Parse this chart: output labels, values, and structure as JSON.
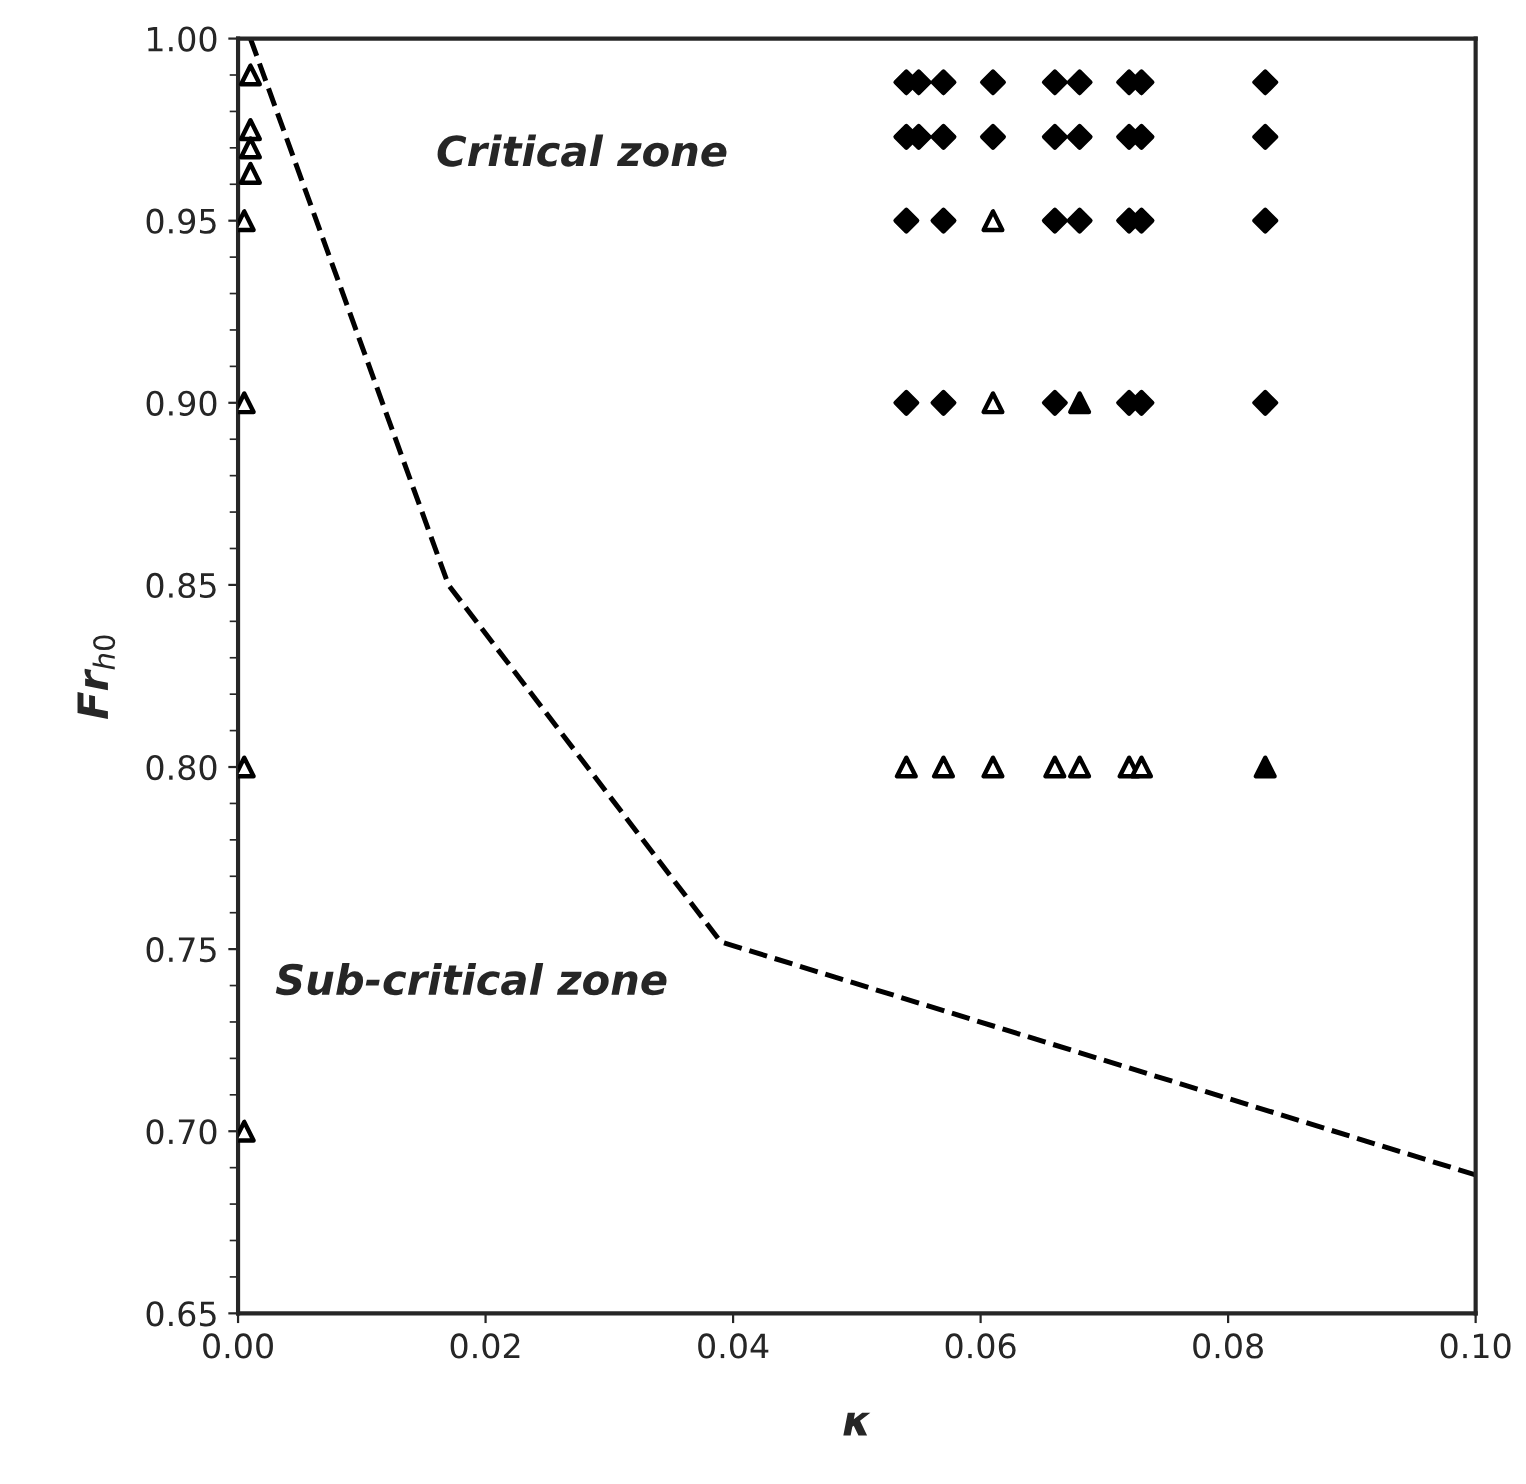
{
  "chart_data": {
    "type": "scatter",
    "xlabel": "κ",
    "ylabel": "Fr$_{h0}$",
    "xlim": [
      0.0,
      0.1
    ],
    "ylim": [
      0.65,
      1.0
    ],
    "xticks": [
      {
        "value": 0.0,
        "label": "0.00"
      },
      {
        "value": 0.02,
        "label": "0.02"
      },
      {
        "value": 0.04,
        "label": "0.04"
      },
      {
        "value": 0.06,
        "label": "0.06"
      },
      {
        "value": 0.08,
        "label": "0.08"
      },
      {
        "value": 0.1,
        "label": "0.10"
      }
    ],
    "yticks": [
      {
        "value": 0.65,
        "label": "0.65"
      },
      {
        "value": 0.7,
        "label": "0.70"
      },
      {
        "value": 0.75,
        "label": "0.75"
      },
      {
        "value": 0.8,
        "label": "0.80"
      },
      {
        "value": 0.85,
        "label": "0.85"
      },
      {
        "value": 0.9,
        "label": "0.90"
      },
      {
        "value": 0.95,
        "label": "0.95"
      },
      {
        "value": 1.0,
        "label": "1.00"
      }
    ],
    "grid": false,
    "annotations": [
      "Critical zone",
      "Sub-critical zone"
    ],
    "series": [
      {
        "marker": "diamond",
        "color": "#000000",
        "x": [
          0.054,
          0.055,
          0.057,
          0.061,
          0.066,
          0.068,
          0.072,
          0.073,
          0.083,
          0.054,
          0.055,
          0.057,
          0.061,
          0.066,
          0.068,
          0.072,
          0.073,
          0.083,
          0.054,
          0.057,
          0.066,
          0.068,
          0.072,
          0.073,
          0.083,
          0.054,
          0.057,
          0.066,
          0.072,
          0.073,
          0.083
        ],
        "values": [
          0.988,
          0.988,
          0.988,
          0.988,
          0.988,
          0.988,
          0.988,
          0.988,
          0.988,
          0.973,
          0.973,
          0.973,
          0.973,
          0.973,
          0.973,
          0.973,
          0.973,
          0.973,
          0.95,
          0.95,
          0.95,
          0.95,
          0.95,
          0.95,
          0.95,
          0.9,
          0.9,
          0.9,
          0.9,
          0.9,
          0.9
        ]
      },
      {
        "marker": "triangle",
        "color": "#ffffff",
        "x": [
          0.001,
          0.001,
          0.001,
          0.001,
          0.0005,
          0.0005,
          0.0005,
          0.0005,
          0.061,
          0.061,
          0.054,
          0.057,
          0.061,
          0.066,
          0.068,
          0.072,
          0.073
        ],
        "values": [
          0.99,
          0.975,
          0.97,
          0.963,
          0.95,
          0.9,
          0.8,
          0.7,
          0.95,
          0.9,
          0.8,
          0.8,
          0.8,
          0.8,
          0.8,
          0.8,
          0.8
        ]
      },
      {
        "marker": "triangle",
        "color": "#000000",
        "x": [
          0.068,
          0.083
        ],
        "values": [
          0.9,
          0.8
        ]
      },
      {
        "type": "line",
        "line_style": "dashed",
        "marker": "none",
        "color": "#000000",
        "x": [
          0.001,
          0.017,
          0.039,
          0.1
        ],
        "values": [
          1.0,
          0.85,
          0.752,
          0.688
        ]
      }
    ]
  }
}
